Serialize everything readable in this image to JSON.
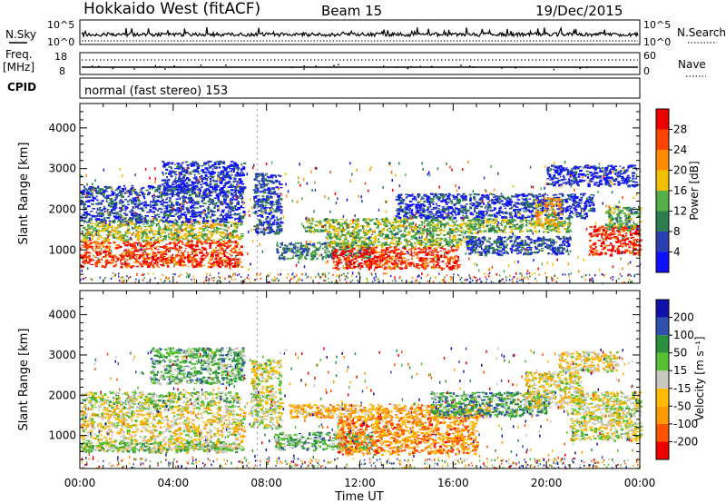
{
  "header": {
    "station": "Hokkaido West (fitACF)",
    "beam": "Beam 15",
    "date": "19/Dec/2015"
  },
  "summary": {
    "nsky_label": "N.Sky",
    "nsearch_label": "N.Search",
    "noise_ticks": [
      "10^5",
      "10^0"
    ],
    "noise_ticks_right": [
      "10^5",
      "10^0"
    ],
    "freq_label": "Freq.",
    "freq_unit": "[MHz]",
    "freq_ticks": [
      "18",
      "8"
    ],
    "nave_label": "Nave",
    "nave_ticks": [
      "60",
      "0"
    ],
    "cpid_label": "CPID",
    "cpid_text": "normal (fast stereo) 153"
  },
  "colors": {
    "power": [
      "#1010ff",
      "#2a3fb0",
      "#2e7d4e",
      "#55b04a",
      "#f0c000",
      "#ff8c00",
      "#ff4400",
      "#ee0000"
    ],
    "velocity": [
      "#ee0000",
      "#ff5500",
      "#ff9900",
      "#ffbb00",
      "#c8c8c0",
      "#55c030",
      "#2a9040",
      "#3050b0",
      "#1010aa"
    ]
  },
  "chart_data": [
    {
      "type": "heatmap",
      "parameter": "power",
      "xlabel": "",
      "ylabel": "Slant Range [km]",
      "xlim": [
        0,
        24
      ],
      "ylim": [
        180,
        4600
      ],
      "yticks": [
        "1000",
        "2000",
        "3000",
        "4000"
      ],
      "colorbar": {
        "label": "Power [dB]",
        "ticks": [
          "4",
          "8",
          "12",
          "16",
          "20",
          "24",
          "28"
        ],
        "range": [
          0,
          32
        ]
      },
      "regions": [
        {
          "t0": 0.0,
          "t1": 6.9,
          "r0": 600,
          "r1": 1250,
          "level": 0.85
        },
        {
          "t0": 0.0,
          "t1": 6.9,
          "r0": 1250,
          "r1": 1750,
          "level": 0.5
        },
        {
          "t0": 0.0,
          "t1": 7.0,
          "r0": 1700,
          "r1": 2600,
          "level": 0.18
        },
        {
          "t0": 3.5,
          "t1": 7.0,
          "r0": 2400,
          "r1": 3200,
          "level": 0.12
        },
        {
          "t0": 7.4,
          "t1": 8.6,
          "r0": 1400,
          "r1": 2900,
          "level": 0.18
        },
        {
          "t0": 8.4,
          "t1": 12.5,
          "r0": 800,
          "r1": 1200,
          "level": 0.3
        },
        {
          "t0": 10.8,
          "t1": 16.2,
          "r0": 550,
          "r1": 1100,
          "level": 0.88
        },
        {
          "t0": 10.5,
          "t1": 17.0,
          "r0": 1100,
          "r1": 1450,
          "level": 0.45
        },
        {
          "t0": 9.5,
          "t1": 21.0,
          "r0": 1450,
          "r1": 1800,
          "level": 0.45
        },
        {
          "t0": 13.5,
          "t1": 22.0,
          "r0": 1800,
          "r1": 2400,
          "level": 0.15
        },
        {
          "t0": 16.5,
          "t1": 21.0,
          "r0": 900,
          "r1": 1350,
          "level": 0.2
        },
        {
          "t0": 19.5,
          "t1": 20.6,
          "r0": 1600,
          "r1": 2300,
          "level": 0.6
        },
        {
          "t0": 20.0,
          "t1": 23.8,
          "r0": 2600,
          "r1": 3100,
          "level": 0.12
        },
        {
          "t0": 21.8,
          "t1": 24.0,
          "r0": 900,
          "r1": 1600,
          "level": 0.9
        },
        {
          "t0": 22.5,
          "t1": 24.0,
          "r0": 1500,
          "r1": 2100,
          "level": 0.4
        }
      ]
    },
    {
      "type": "heatmap",
      "parameter": "velocity",
      "xlabel": "Time UT",
      "ylabel": "Slant Range [km]",
      "xlim": [
        0,
        24
      ],
      "ylim": [
        180,
        4600
      ],
      "xticks": [
        "00:00",
        "04:00",
        "08:00",
        "12:00",
        "16:00",
        "20:00",
        "00:00"
      ],
      "yticks": [
        "1000",
        "2000",
        "3000",
        "4000"
      ],
      "colorbar": {
        "label": "Velocity [m s⁻¹]",
        "ticks": [
          "200",
          "100",
          "50",
          "15",
          "-15",
          "-50",
          "-100",
          "-200"
        ],
        "range": [
          -250,
          250
        ]
      },
      "regions": [
        {
          "t0": 0.0,
          "t1": 7.0,
          "r0": 650,
          "r1": 1700,
          "level": 0.45
        },
        {
          "t0": 0.0,
          "t1": 6.8,
          "r0": 600,
          "r1": 850,
          "level": 0.6
        },
        {
          "t0": 0.0,
          "t1": 6.8,
          "r0": 1700,
          "r1": 2100,
          "level": 0.55
        },
        {
          "t0": 3.0,
          "t1": 7.0,
          "r0": 2300,
          "r1": 3200,
          "level": 0.65
        },
        {
          "t0": 7.3,
          "t1": 8.6,
          "r0": 1200,
          "r1": 2900,
          "level": 0.5
        },
        {
          "t0": 8.3,
          "t1": 12.5,
          "r0": 650,
          "r1": 1100,
          "level": 0.65
        },
        {
          "t0": 11.0,
          "t1": 17.0,
          "r0": 550,
          "r1": 1500,
          "level": 0.25
        },
        {
          "t0": 9.0,
          "t1": 17.5,
          "r0": 1450,
          "r1": 1800,
          "level": 0.35
        },
        {
          "t0": 15.0,
          "t1": 20.0,
          "r0": 1500,
          "r1": 2100,
          "level": 0.7
        },
        {
          "t0": 19.0,
          "t1": 21.5,
          "r0": 1700,
          "r1": 2600,
          "level": 0.45
        },
        {
          "t0": 21.0,
          "t1": 24.0,
          "r0": 900,
          "r1": 2100,
          "level": 0.5
        },
        {
          "t0": 20.5,
          "t1": 23.0,
          "r0": 2600,
          "r1": 3100,
          "level": 0.45
        }
      ]
    }
  ]
}
